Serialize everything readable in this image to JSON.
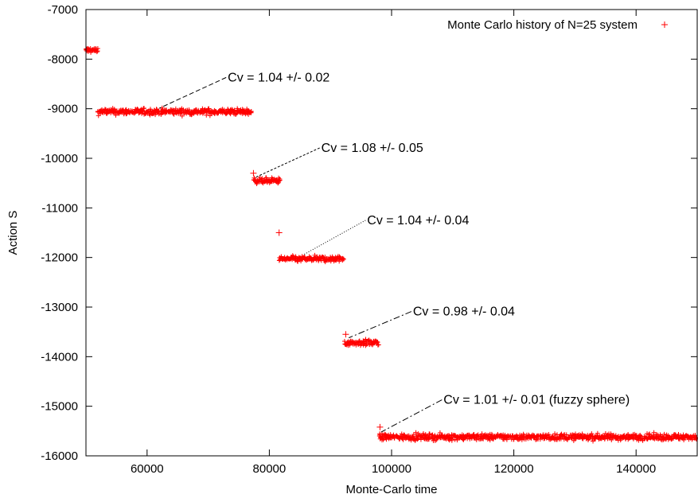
{
  "chart_data": {
    "type": "scatter",
    "title": "",
    "xlabel": "Monte-Carlo time",
    "ylabel": "Action S",
    "xlim": [
      50000,
      150000
    ],
    "ylim": [
      -16000,
      -7000
    ],
    "x_ticks": [
      60000,
      80000,
      100000,
      120000,
      140000
    ],
    "x_tick_labels": [
      "60000",
      "80000",
      "100000",
      "120000",
      "140000"
    ],
    "y_ticks": [
      -7000,
      -8000,
      -9000,
      -10000,
      -11000,
      -12000,
      -13000,
      -14000,
      -15000,
      -16000
    ],
    "y_tick_labels": [
      "-7000",
      "-8000",
      "-9000",
      "-10000",
      "-11000",
      "-12000",
      "-13000",
      "-14000",
      "-15000",
      "-16000"
    ],
    "grid": false,
    "legend_position": "top-right",
    "marker": "+",
    "color": "#ff0000",
    "series": [
      {
        "name": "Monte Carlo history of N=25 system",
        "segments": [
          {
            "x_start": 50000,
            "x_end": 52000,
            "y_mean": -7820,
            "y_spread": 50
          },
          {
            "x_start": 52000,
            "x_end": 77000,
            "y_mean": -9060,
            "y_spread": 55
          },
          {
            "x_start": 77500,
            "x_end": 81700,
            "y_mean": -10450,
            "y_spread": 50
          },
          {
            "x_start": 81700,
            "x_end": 92200,
            "y_mean": -12030,
            "y_spread": 50
          },
          {
            "x_start": 92400,
            "x_end": 97900,
            "y_mean": -13720,
            "y_spread": 55
          },
          {
            "x_start": 98000,
            "x_end": 150000,
            "y_mean": -15620,
            "y_spread": 55
          }
        ],
        "outliers": [
          {
            "x": 77400,
            "y": -10300
          },
          {
            "x": 81600,
            "y": -11500
          },
          {
            "x": 92500,
            "y": -13550
          },
          {
            "x": 98100,
            "y": -15420
          }
        ]
      }
    ],
    "annotations": [
      {
        "text": "Cv = 1.04 +/- 0.02",
        "text_x": 73200,
        "text_y": -8450,
        "arrow_x": 62000,
        "arrow_y": -8990,
        "dash": "6,3"
      },
      {
        "text": "Cv = 1.08 +/- 0.05",
        "text_x": 88500,
        "text_y": -9870,
        "arrow_x": 77800,
        "arrow_y": -10380,
        "dash": "3,2"
      },
      {
        "text": "Cv = 1.04 +/- 0.04",
        "text_x": 96000,
        "text_y": -11330,
        "arrow_x": 85500,
        "arrow_y": -11950,
        "dash": "1,2"
      },
      {
        "text": "Cv = 0.98 +/- 0.04",
        "text_x": 103500,
        "text_y": -13170,
        "arrow_x": 93000,
        "arrow_y": -13620,
        "dash": "8,3,2,3"
      },
      {
        "text": "Cv = 1.01 +/- 0.01 (fuzzy sphere)",
        "text_x": 108500,
        "text_y": -14950,
        "arrow_x": 98300,
        "arrow_y": -15520,
        "dash": "8,3,2,3"
      }
    ]
  }
}
